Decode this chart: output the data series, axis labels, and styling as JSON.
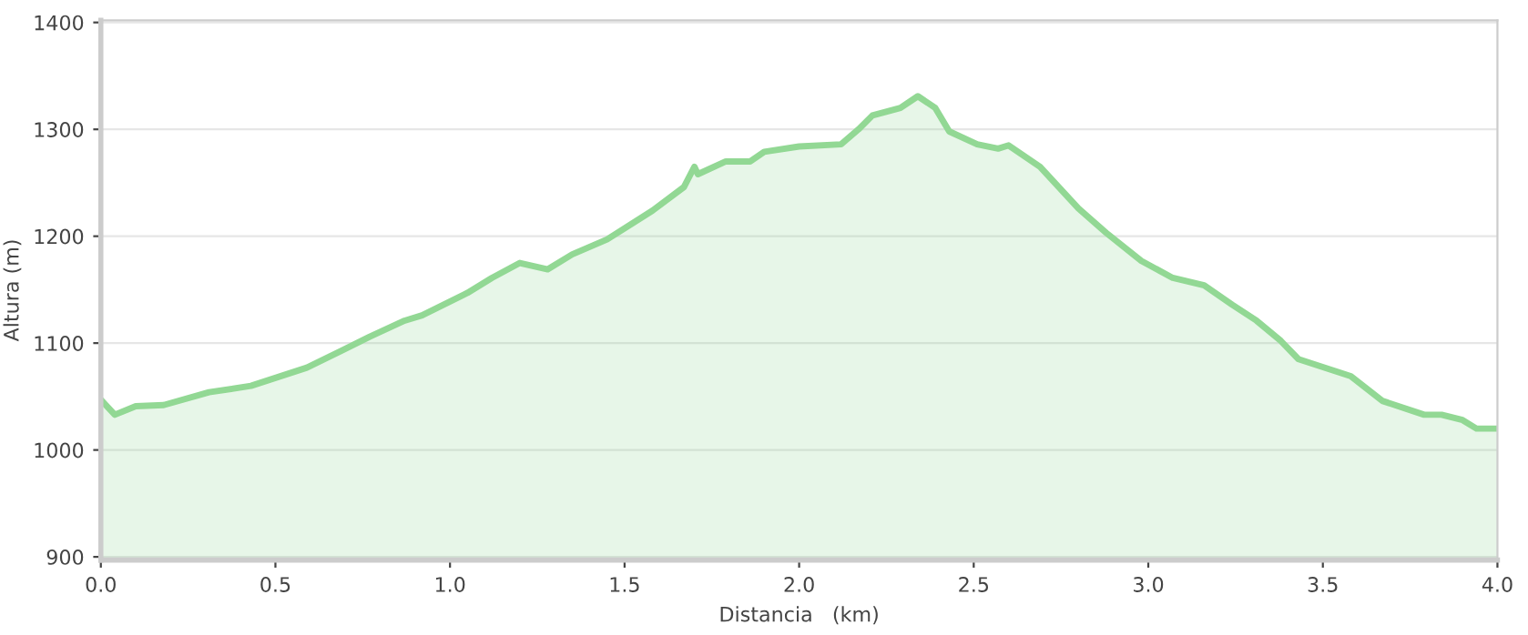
{
  "chart_data": {
    "type": "area",
    "xlabel": "Distancia   (km)",
    "ylabel": "Altura (m)",
    "x": [
      0.0,
      0.04,
      0.1,
      0.18,
      0.31,
      0.43,
      0.59,
      0.69,
      0.77,
      0.87,
      0.92,
      1.05,
      1.12,
      1.2,
      1.28,
      1.35,
      1.45,
      1.58,
      1.67,
      1.7,
      1.71,
      1.79,
      1.86,
      1.9,
      2.0,
      2.12,
      2.17,
      2.21,
      2.29,
      2.34,
      2.39,
      2.43,
      2.51,
      2.57,
      2.6,
      2.69,
      2.8,
      2.88,
      2.98,
      3.07,
      3.16,
      3.24,
      3.31,
      3.38,
      3.43,
      3.58,
      3.67,
      3.79,
      3.84,
      3.9,
      3.94,
      4.0
    ],
    "series": [
      {
        "color": "#92d894",
        "values": [
          1047,
          1033,
          1041,
          1042,
          1054,
          1060,
          1077,
          1093,
          1106,
          1121,
          1126,
          1147,
          1161,
          1175,
          1169,
          1183,
          1197,
          1224,
          1246,
          1265,
          1258,
          1270,
          1270,
          1279,
          1284,
          1286,
          1300,
          1313,
          1320,
          1331,
          1320,
          1298,
          1286,
          1282,
          1285,
          1265,
          1226,
          1203,
          1177,
          1161,
          1154,
          1136,
          1121,
          1102,
          1085,
          1069,
          1046,
          1033,
          1033,
          1028,
          1020,
          1020
        ]
      }
    ],
    "xlim": [
      0,
      4.0
    ],
    "ylim": [
      897,
      1402
    ],
    "xticks": [
      {
        "value": 0,
        "label": "0.0"
      },
      0.5,
      {
        "value": 1,
        "label": "1.0"
      },
      1.5,
      {
        "value": 2,
        "label": "2.0"
      },
      2.5,
      {
        "value": 3,
        "label": "3.0"
      },
      3.5,
      {
        "value": 4,
        "label": "4.0"
      }
    ],
    "yticks": [
      900,
      1000,
      1100,
      1200,
      1300,
      1400
    ],
    "grid": "y",
    "legend": false
  }
}
